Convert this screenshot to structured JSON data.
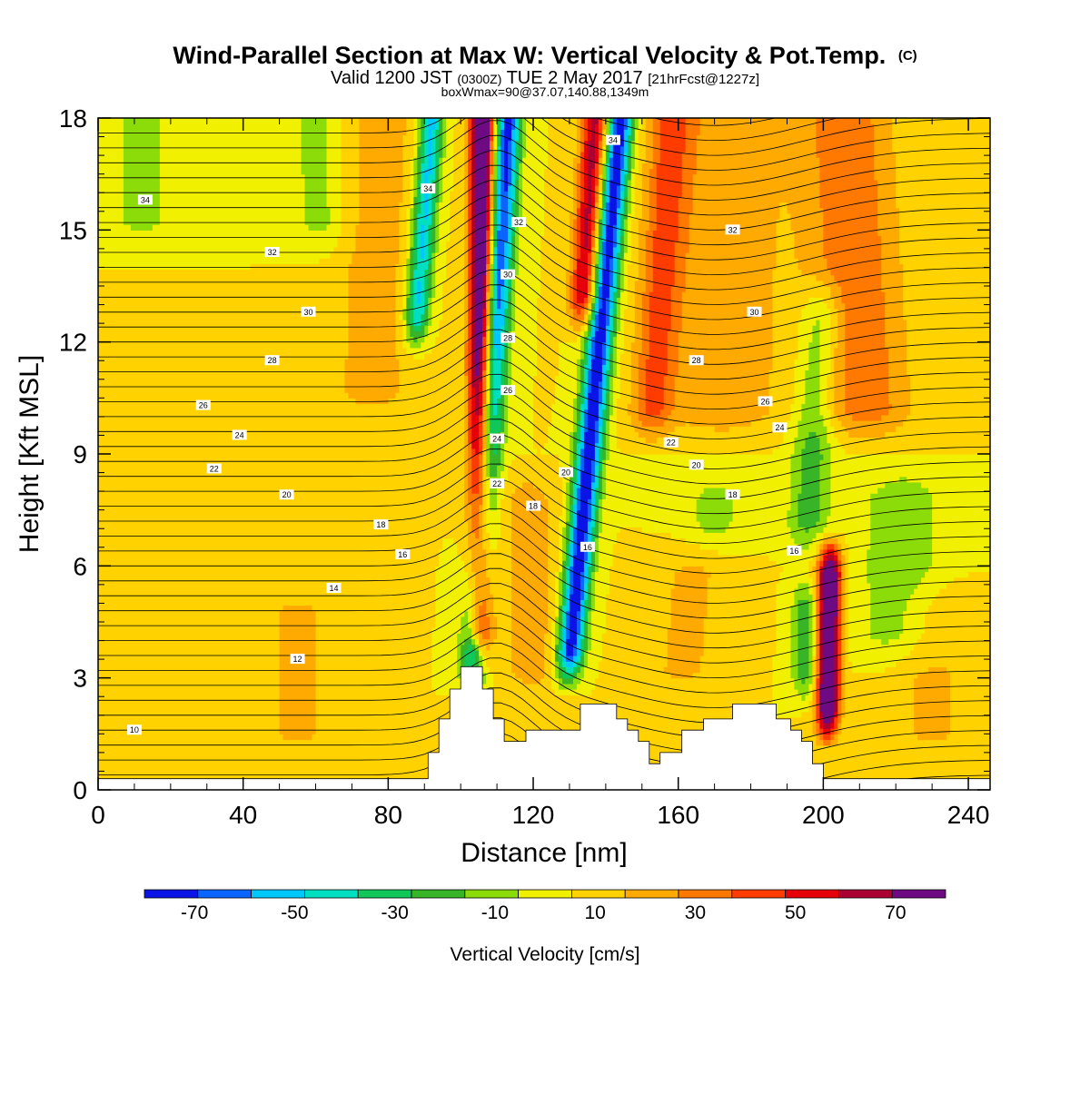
{
  "title": {
    "main": "Wind-Parallel Section at Max W: Vertical Velocity & Pot.Temp.",
    "main_mark": "(C)",
    "valid_prefix": "Valid 1200 JST",
    "valid_utc": "(0300Z)",
    "valid_date": "TUE 2 May 2017",
    "forecast_tag": "[21hrFcst@1227z]",
    "boxinfo": "boxWmax=90@37.07,140.88,1349m"
  },
  "chart_data": {
    "type": "heatmap",
    "xlabel": "Distance [nm]",
    "ylabel": "Height [Kft MSL]",
    "xlim": [
      0,
      246
    ],
    "ylim": [
      0,
      18
    ],
    "x_ticks": [
      "0",
      "40",
      "80",
      "120",
      "160",
      "200",
      "240"
    ],
    "x_tick_values": [
      0,
      40,
      80,
      120,
      160,
      200,
      240
    ],
    "y_ticks": [
      "0",
      "3",
      "6",
      "9",
      "12",
      "15",
      "18"
    ],
    "y_tick_values": [
      0,
      3,
      6,
      9,
      12,
      15,
      18
    ],
    "colorbar": {
      "title": "Vertical Velocity [cm/s]",
      "levels": [
        -80,
        -70,
        -60,
        -50,
        -40,
        -30,
        -20,
        -10,
        0,
        10,
        20,
        30,
        40,
        50,
        60,
        70,
        80
      ],
      "colors": [
        "#0a14e6",
        "#0a64ff",
        "#00c8ff",
        "#00e0c0",
        "#10c85a",
        "#38b428",
        "#8cdc0a",
        "#f0f000",
        "#ffd200",
        "#ffaa00",
        "#ff7800",
        "#ff3c00",
        "#e6000a",
        "#aa0032",
        "#6e0a82"
      ],
      "tick_labels": [
        "-70",
        "-50",
        "-30",
        "-10",
        "10",
        "30",
        "50",
        "70"
      ],
      "tick_values": [
        -70,
        -50,
        -30,
        -10,
        10,
        30,
        50,
        70
      ]
    },
    "theta_contour_labels": [
      {
        "text": "34",
        "x": 13,
        "y": 15.8
      },
      {
        "text": "32",
        "x": 48,
        "y": 14.4
      },
      {
        "text": "30",
        "x": 58,
        "y": 12.8
      },
      {
        "text": "28",
        "x": 48,
        "y": 11.5
      },
      {
        "text": "26",
        "x": 29,
        "y": 10.3
      },
      {
        "text": "24",
        "x": 39,
        "y": 9.5
      },
      {
        "text": "22",
        "x": 32,
        "y": 8.6
      },
      {
        "text": "20",
        "x": 52,
        "y": 7.9
      },
      {
        "text": "18",
        "x": 78,
        "y": 7.1
      },
      {
        "text": "16",
        "x": 84,
        "y": 6.3
      },
      {
        "text": "14",
        "x": 65,
        "y": 5.4
      },
      {
        "text": "12",
        "x": 55,
        "y": 3.5
      },
      {
        "text": "10",
        "x": 10,
        "y": 1.6
      },
      {
        "text": "34",
        "x": 91,
        "y": 16.1
      },
      {
        "text": "32",
        "x": 116,
        "y": 15.2
      },
      {
        "text": "30",
        "x": 113,
        "y": 13.8
      },
      {
        "text": "28",
        "x": 113,
        "y": 12.1
      },
      {
        "text": "26",
        "x": 113,
        "y": 10.7
      },
      {
        "text": "24",
        "x": 110,
        "y": 9.4
      },
      {
        "text": "22",
        "x": 110,
        "y": 8.2
      },
      {
        "text": "18",
        "x": 120,
        "y": 7.6
      },
      {
        "text": "20",
        "x": 129,
        "y": 8.5
      },
      {
        "text": "16",
        "x": 135,
        "y": 6.5
      },
      {
        "text": "34",
        "x": 142,
        "y": 17.4
      },
      {
        "text": "32",
        "x": 175,
        "y": 15.0
      },
      {
        "text": "30",
        "x": 181,
        "y": 12.8
      },
      {
        "text": "28",
        "x": 165,
        "y": 11.5
      },
      {
        "text": "26",
        "x": 184,
        "y": 10.4
      },
      {
        "text": "24",
        "x": 188,
        "y": 9.7
      },
      {
        "text": "22",
        "x": 158,
        "y": 9.3
      },
      {
        "text": "20",
        "x": 165,
        "y": 8.7
      },
      {
        "text": "18",
        "x": 175,
        "y": 7.9
      },
      {
        "text": "16",
        "x": 192,
        "y": 6.4
      }
    ],
    "terrain_profile": [
      [
        0,
        0.3
      ],
      [
        91,
        0.3
      ],
      [
        91,
        1.0
      ],
      [
        94,
        1.0
      ],
      [
        94,
        1.9
      ],
      [
        97,
        1.9
      ],
      [
        97,
        2.7
      ],
      [
        100,
        2.7
      ],
      [
        100,
        3.3
      ],
      [
        106,
        3.3
      ],
      [
        106,
        2.7
      ],
      [
        109,
        2.7
      ],
      [
        109,
        1.9
      ],
      [
        112,
        1.9
      ],
      [
        112,
        1.3
      ],
      [
        118,
        1.3
      ],
      [
        118,
        1.6
      ],
      [
        133,
        1.6
      ],
      [
        133,
        2.3
      ],
      [
        143,
        2.3
      ],
      [
        143,
        1.9
      ],
      [
        146,
        1.9
      ],
      [
        146,
        1.6
      ],
      [
        149,
        1.6
      ],
      [
        149,
        1.3
      ],
      [
        152,
        1.3
      ],
      [
        152,
        0.7
      ],
      [
        155,
        0.7
      ],
      [
        155,
        1.0
      ],
      [
        161,
        1.0
      ],
      [
        161,
        1.6
      ],
      [
        167,
        1.6
      ],
      [
        167,
        1.9
      ],
      [
        175,
        1.9
      ],
      [
        175,
        2.3
      ],
      [
        187,
        2.3
      ],
      [
        187,
        1.9
      ],
      [
        191,
        1.9
      ],
      [
        191,
        1.6
      ],
      [
        194,
        1.6
      ],
      [
        194,
        1.3
      ],
      [
        197,
        1.3
      ],
      [
        197,
        0.7
      ],
      [
        200,
        0.7
      ],
      [
        200,
        0.3
      ],
      [
        246,
        0.3
      ]
    ]
  }
}
